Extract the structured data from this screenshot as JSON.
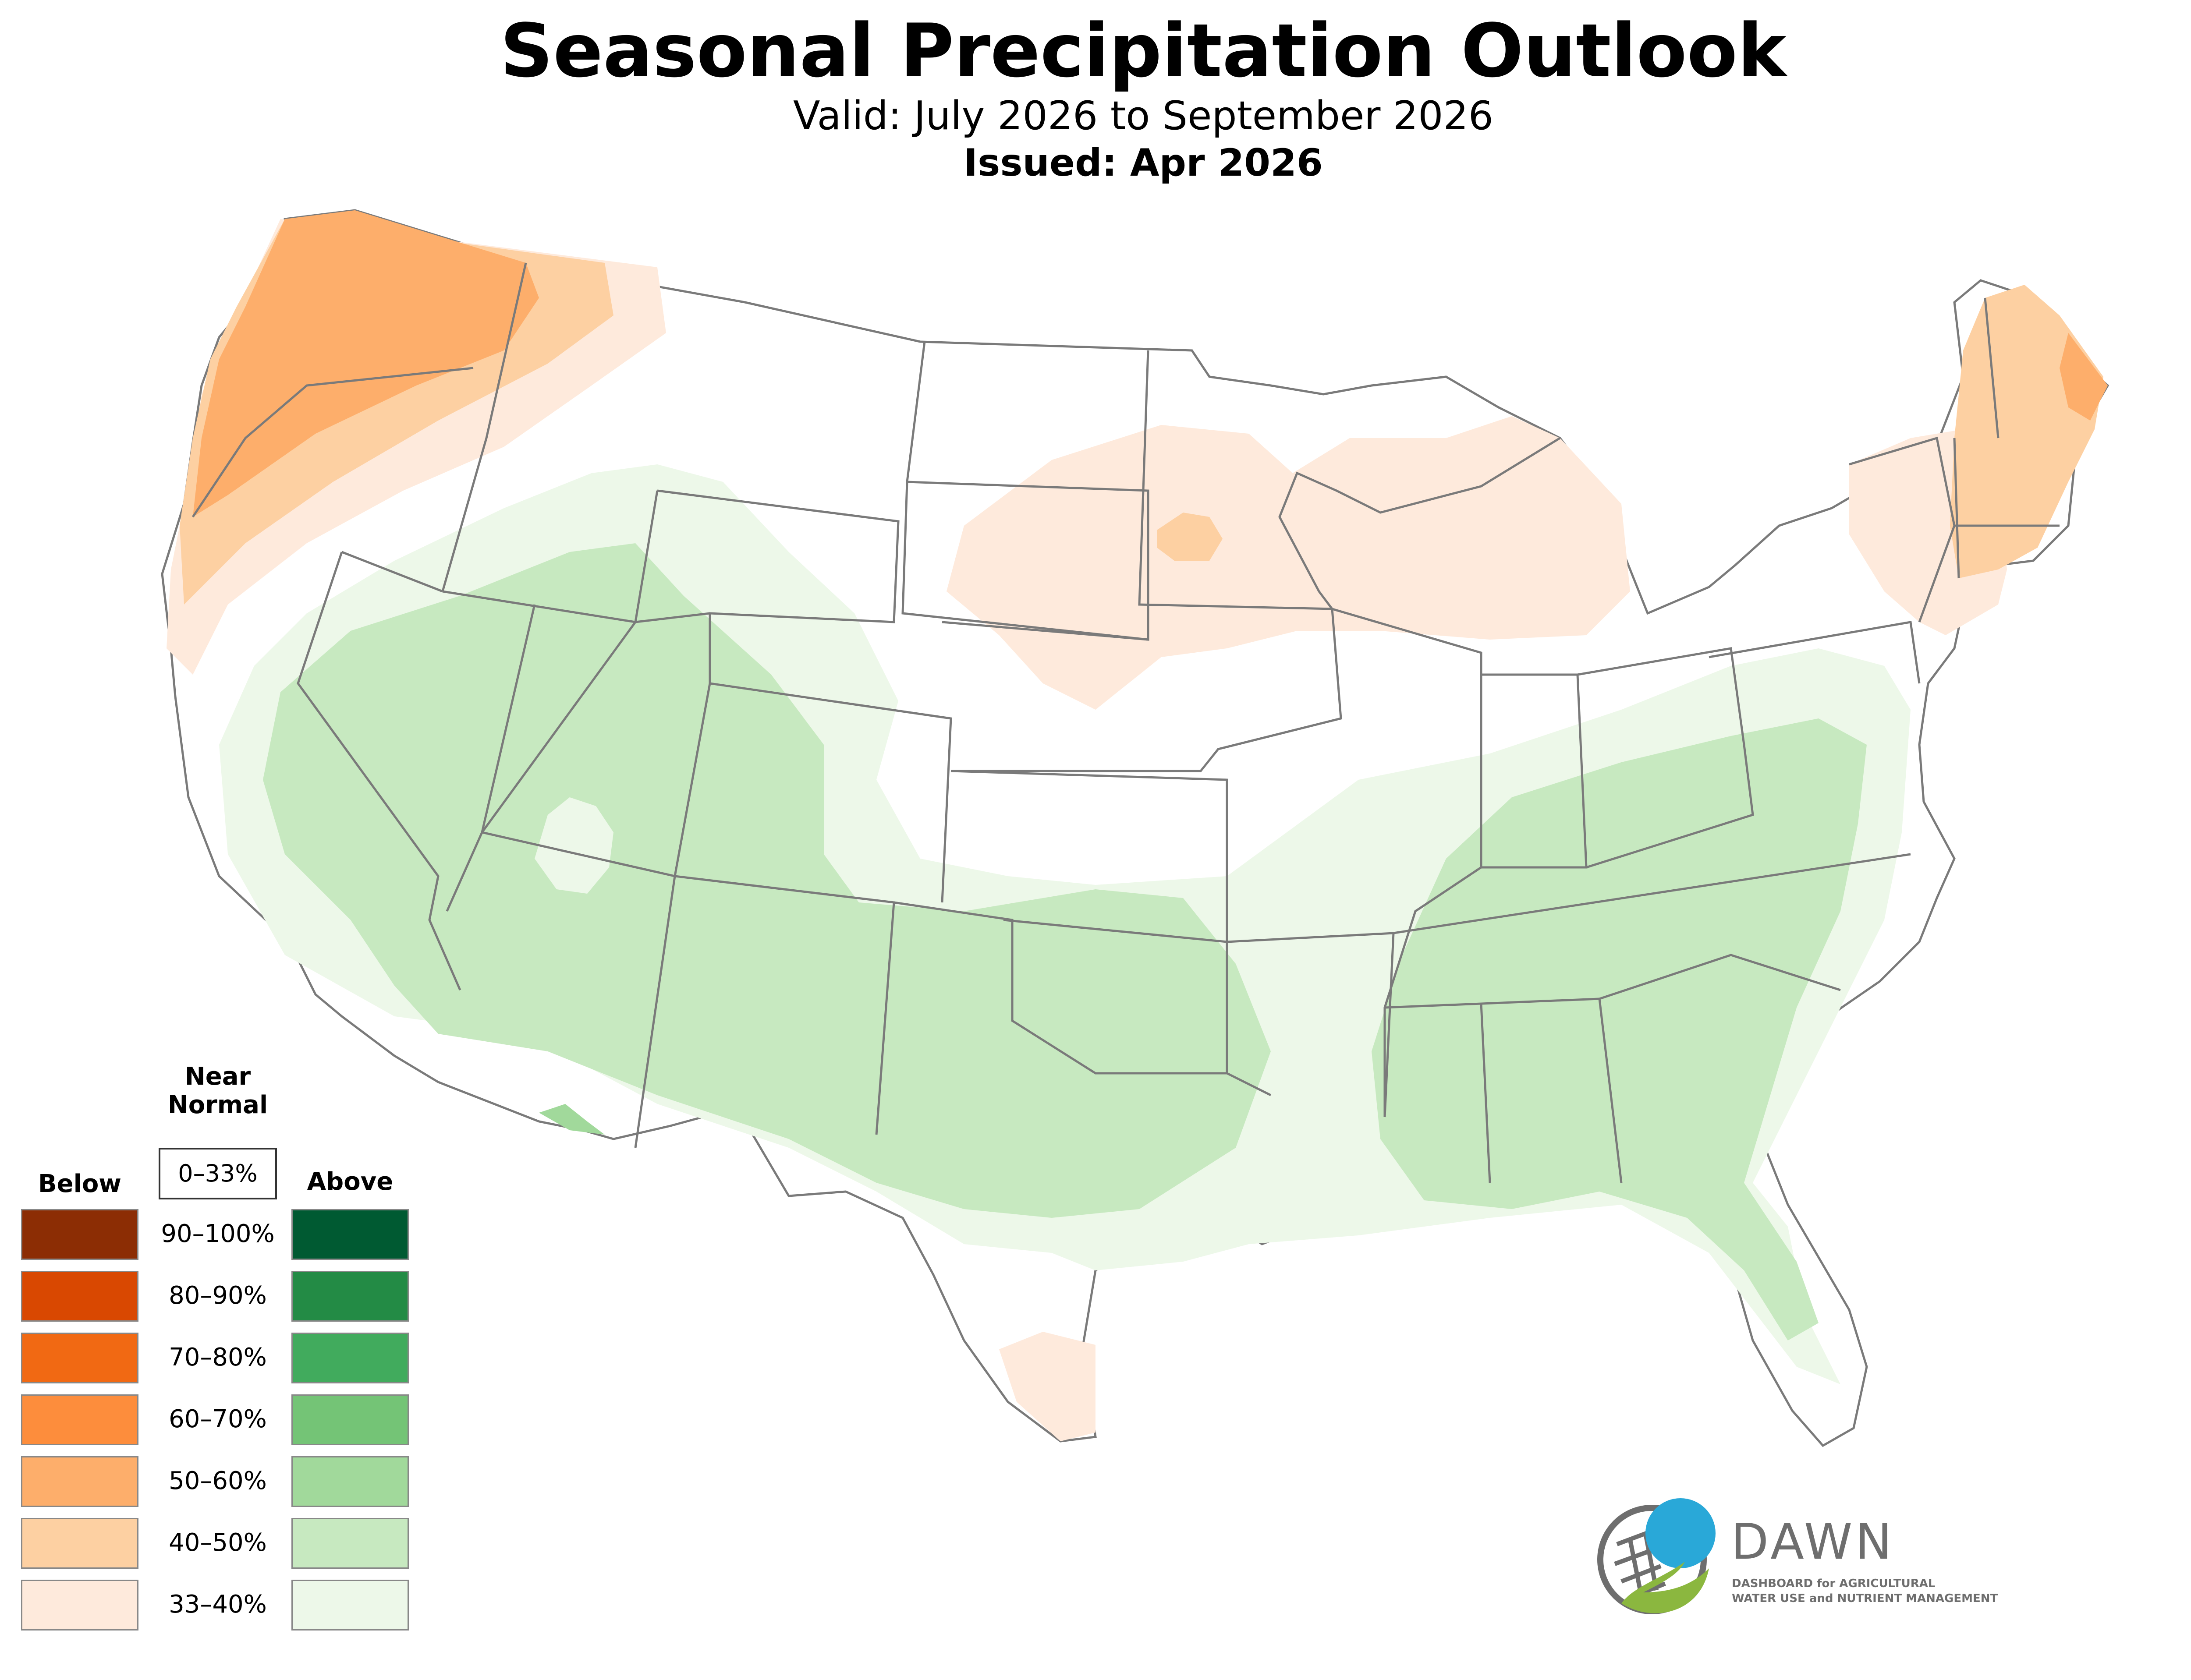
{
  "title": "Seasonal Precipitation Outlook",
  "valid": "Valid: July 2026 to September 2026",
  "issued": "Issued: Apr 2026",
  "legend": {
    "below_header": "Below",
    "above_header": "Above",
    "near_header_line1": "Near",
    "near_header_line2": "Normal",
    "near_range": "0–33%",
    "ranges": [
      "90–100%",
      "80–90%",
      "70–80%",
      "60–70%",
      "50–60%",
      "40–50%",
      "33–40%"
    ],
    "below_colors": [
      "#8c2d04",
      "#d94801",
      "#f16913",
      "#fd8d3c",
      "#fdae6b",
      "#fdd0a2",
      "#feeadc"
    ],
    "above_colors": [
      "#005a32",
      "#238b45",
      "#41ab5d",
      "#74c476",
      "#a1d99b",
      "#c7e9c0",
      "#edf8e9"
    ]
  },
  "map_colors": {
    "below_33_40": "#feeadc",
    "below_40_50": "#fdd0a2",
    "below_50_60": "#fdae6b",
    "above_33_40": "#edf8e9",
    "above_40_50": "#c7e9c0",
    "above_50_60": "#a1d99b",
    "state_border": "#7a7a7a"
  },
  "logo": {
    "name": "DAWN",
    "sub_line1": "DASHBOARD for AGRICULTURAL",
    "sub_line2": "WATER USE and NUTRIENT MANAGEMENT",
    "blue": "#29a8d8",
    "green": "#8bb73f",
    "grey": "#6e6e6e"
  }
}
